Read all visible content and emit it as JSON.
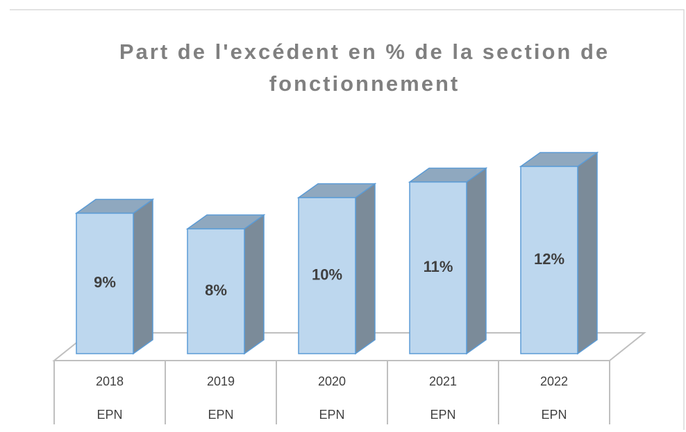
{
  "chart_data": {
    "type": "bar3d",
    "title": [
      "Part de l'excédent en % de la section de",
      "fonctionnement"
    ],
    "categories": [
      "2018",
      "2019",
      "2020",
      "2021",
      "2022"
    ],
    "subcategories": [
      "EPN",
      "EPN",
      "EPN",
      "EPN",
      "EPN"
    ],
    "values": [
      9,
      8,
      10,
      11,
      12
    ],
    "value_labels": [
      "9%",
      "8%",
      "10%",
      "11%",
      "12%"
    ],
    "color": "#bdd7ee"
  }
}
